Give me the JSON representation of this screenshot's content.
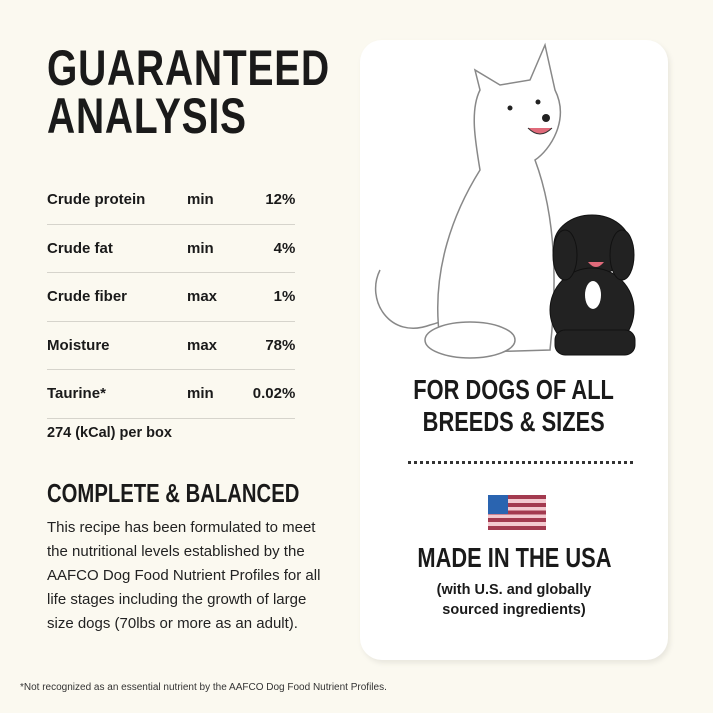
{
  "title_line1": "GUARANTEED",
  "title_line2": "ANALYSIS",
  "analysis": [
    {
      "nutrient": "Crude protein",
      "qualifier": "min",
      "value": "12",
      "unit": "%"
    },
    {
      "nutrient": "Crude fat",
      "qualifier": "min",
      "value": "4",
      "unit": "%"
    },
    {
      "nutrient": "Crude fiber",
      "qualifier": "max",
      "value": "1",
      "unit": "%"
    },
    {
      "nutrient": "Moisture",
      "qualifier": "max",
      "value": "78",
      "unit": "%"
    },
    {
      "nutrient": "Taurine*",
      "qualifier": "min",
      "value": "0.02",
      "unit": "%"
    }
  ],
  "calories": "274 (kCal) per box",
  "complete_heading": "COMPLETE & BALANCED",
  "complete_text": "This recipe has been formulated to meet the nutritional levels established by the AAFCO Dog Food Nutrient Profiles for all life stages including the growth of large size dogs (70lbs or more as an adult).",
  "footnote": "*Not recognized as an essential nutrient by the AAFCO Dog Food Nutrient Profiles.",
  "card": {
    "line1": "FOR DOGS OF ALL",
    "line2": "BREEDS & SIZES",
    "made": "MADE IN THE USA",
    "sub1": "(with U.S. and globally",
    "sub2": "sourced ingredients)"
  },
  "colors": {
    "background": "#fbf9f0",
    "flag_blue": "#2a64b0",
    "flag_red": "#a33a4f"
  }
}
